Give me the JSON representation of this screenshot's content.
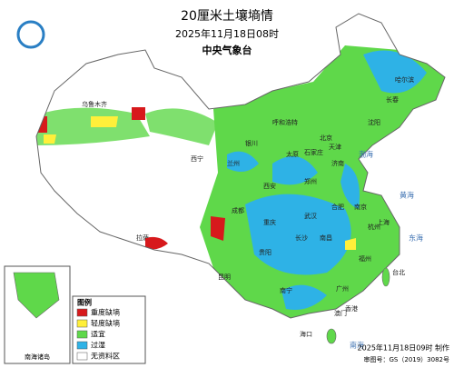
{
  "title": "20厘米土壤墒情",
  "subtitle": "2025年11月18日08时",
  "issuer": "中央气象台",
  "legend": {
    "title": "图例",
    "items": [
      {
        "label": "重度缺墒",
        "color": "#d7191c"
      },
      {
        "label": "轻度缺墒",
        "color": "#ffef3a"
      },
      {
        "label": "适宜",
        "color": "#5fd84a"
      },
      {
        "label": "过湿",
        "color": "#2eb2e6"
      },
      {
        "label": "无资料区",
        "color": "#ffffff"
      }
    ]
  },
  "places": [
    "北京",
    "天津",
    "上海",
    "台北",
    "香港",
    "澳门",
    "海口",
    "南宁",
    "广州",
    "昆明",
    "拉萨",
    "成都",
    "重庆",
    "武汉",
    "长沙",
    "南昌",
    "福州",
    "杭州",
    "南京",
    "合肥",
    "郑州",
    "济南",
    "石家庄",
    "太原",
    "西安",
    "兰州",
    "西宁",
    "银川",
    "呼和浩特",
    "沈阳",
    "长春",
    "哈尔滨",
    "贵阳",
    "乌鲁木齐"
  ],
  "seas": [
    "渤海",
    "黄海",
    "东海",
    "南海"
  ],
  "inset": {
    "label": "南海诸岛"
  },
  "footer": {
    "made": "2025年11月18日09时 制作",
    "approval": "审图号：GS（2019）3082号"
  }
}
